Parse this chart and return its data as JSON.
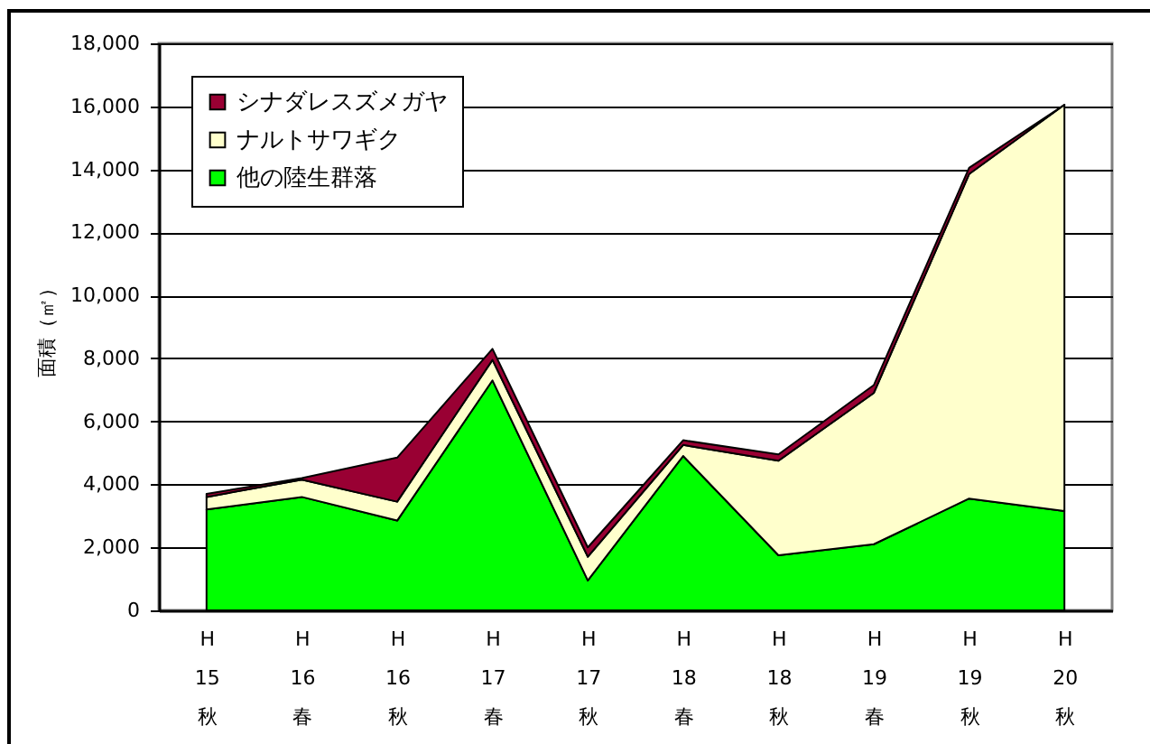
{
  "chart_data": {
    "type": "area",
    "stacked": true,
    "ylabel": "面積（㎡）",
    "categories": [
      "H\n15\n秋",
      "H\n16\n春",
      "H\n16\n秋",
      "H\n17\n春",
      "H\n17\n秋",
      "H\n18\n春",
      "H\n18\n秋",
      "H\n19\n春",
      "H\n19\n秋",
      "H\n20\n秋"
    ],
    "series": [
      {
        "name": "他の陸生群落",
        "color": "#00ff00",
        "values": [
          3200,
          3600,
          2850,
          7300,
          950,
          4900,
          1750,
          2100,
          3550,
          3150
        ]
      },
      {
        "name": "ナルトサワギク",
        "color": "#ffffcc",
        "values": [
          400,
          550,
          600,
          650,
          750,
          350,
          3000,
          4800,
          10300,
          12900
        ]
      },
      {
        "name": "シナダレスズメガヤ",
        "color": "#990033",
        "values": [
          100,
          50,
          1400,
          350,
          300,
          150,
          200,
          250,
          200,
          0
        ]
      }
    ],
    "ylim": [
      0,
      18000
    ],
    "yticks": [
      0,
      {
        "value": 2000,
        "label": "2,000"
      },
      {
        "value": 4000,
        "label": "4,000"
      },
      {
        "value": 6000,
        "label": "6,000"
      },
      {
        "value": 8000,
        "label": "8,000"
      },
      {
        "value": 10000,
        "label": "10,000"
      },
      {
        "value": 12000,
        "label": "12,000"
      },
      {
        "value": 14000,
        "label": "14,000"
      },
      {
        "value": 16000,
        "label": "16,000"
      },
      {
        "value": 18000,
        "label": "18,000"
      }
    ],
    "grid": "y",
    "legend": "top left"
  }
}
